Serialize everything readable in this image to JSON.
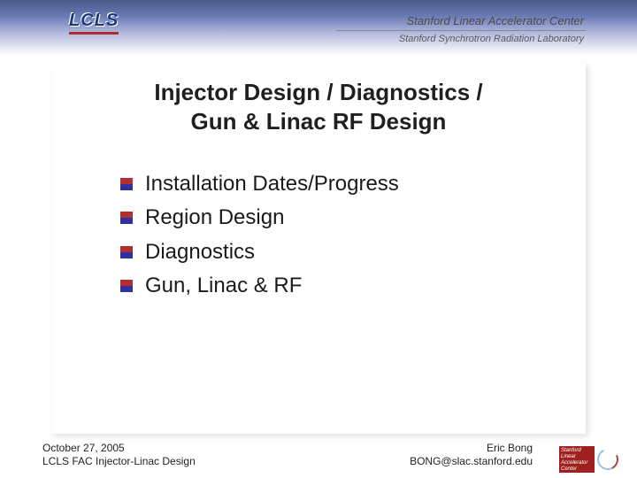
{
  "header": {
    "lcls_text": "LCLS",
    "slac_text": "Stanford Linear Accelerator Center",
    "ssrl_text": "Stanford Synchrotron Radiation Laboratory"
  },
  "title_line1": "Injector Design / Diagnostics /",
  "title_line2": "Gun & Linac RF Design",
  "bullets": [
    "Installation Dates/Progress",
    "Region Design",
    "Diagnostics",
    "Gun,  Linac & RF"
  ],
  "footer": {
    "date": "October 27, 2005",
    "sub": "LCLS FAC Injector-Linac Design",
    "author": "Eric Bong",
    "email": "BONG@slac.stanford.edu"
  },
  "corner_logo_text": "Stanford Linear Accelerator Center",
  "colors": {
    "header_gradient_top": "#4a5a8a",
    "header_gradient_bottom": "#ffffff",
    "title_color": "#1f1f1f",
    "bullet_red": "#b03030",
    "bullet_blue": "#3030a0",
    "body_text": "#1a1a1a",
    "shadow": "rgba(0,0,0,0.12)"
  },
  "typography": {
    "title_fontsize": 26,
    "bullet_fontsize": 24,
    "footer_fontsize": 12,
    "header_slac_fontsize": 13,
    "header_ssrl_fontsize": 11
  }
}
